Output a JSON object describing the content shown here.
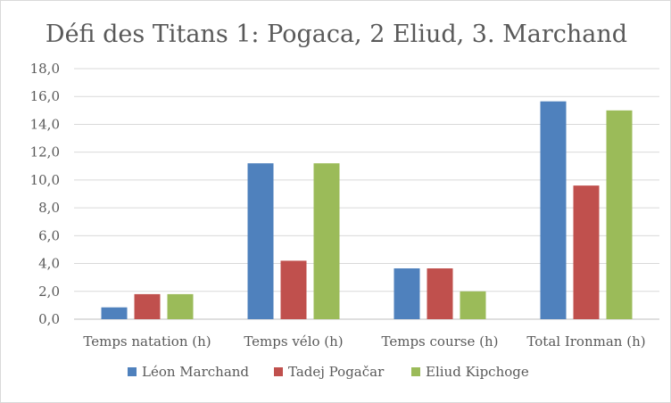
{
  "chart_data": {
    "type": "bar",
    "title": "Défi des Titans 1: Pogaca, 2 Eliud, 3. Marchand",
    "xlabel": "",
    "ylabel": "",
    "categories": [
      "Temps natation (h)",
      "Temps vélo (h)",
      "Temps course (h)",
      "Total Ironman (h)"
    ],
    "series": [
      {
        "name": "Léon Marchand",
        "color": "#4f81bd",
        "values": [
          0.85,
          11.2,
          3.65,
          15.65
        ]
      },
      {
        "name": "Tadej Pogačar",
        "color": "#c0504d",
        "values": [
          1.8,
          4.2,
          3.65,
          9.6
        ]
      },
      {
        "name": "Eliud Kipchoge",
        "color": "#9bbb59",
        "values": [
          1.8,
          11.2,
          2.0,
          15.0
        ]
      }
    ],
    "ylim": [
      0,
      18
    ],
    "yticks": [
      "0,0",
      "2,0",
      "4,0",
      "6,0",
      "8,0",
      "10,0",
      "12,0",
      "14,0",
      "16,0",
      "18,0"
    ],
    "grid": true,
    "legend": "bottom"
  }
}
